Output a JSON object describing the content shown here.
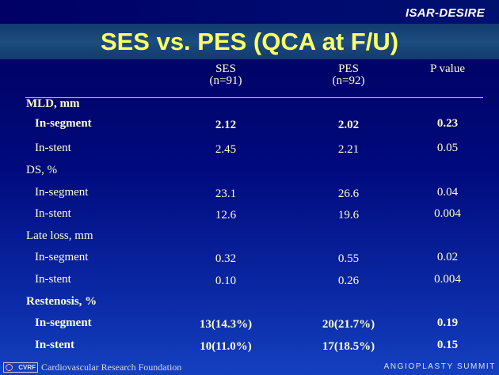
{
  "header": {
    "brand": "ISAR-DESIRE"
  },
  "title": "SES vs. PES (QCA at F/U)",
  "columns": {
    "ses": {
      "name": "SES",
      "n": "(n=91)"
    },
    "pes": {
      "name": "PES",
      "n": "(n=92)"
    },
    "p": {
      "name": "P value"
    }
  },
  "sections": [
    {
      "title": "MLD, mm",
      "rows": [
        {
          "label": "In-segment",
          "ses": "2.12",
          "pes": "2.02",
          "p": "0.23"
        },
        {
          "label": "In-stent",
          "ses": "2.45",
          "pes": "2.21",
          "p": "0.05"
        }
      ]
    },
    {
      "title": "DS, %",
      "rows": [
        {
          "label": "In-segment",
          "ses": "23.1",
          "pes": "26.6",
          "p": "0.04"
        },
        {
          "label": "In-stent",
          "ses": "12.6",
          "pes": "19.6",
          "p": "0.004"
        }
      ]
    },
    {
      "title": "Late loss, mm",
      "rows": [
        {
          "label": "In-segment",
          "ses": "0.32",
          "pes": "0.55",
          "p": "0.02"
        },
        {
          "label": "In-stent",
          "ses": "0.10",
          "pes": "0.26",
          "p": "0.004"
        }
      ]
    },
    {
      "title": "Restenosis, %",
      "rows": [
        {
          "label": "In-segment",
          "ses": "13(14.3%)",
          "pes": "20(21.7%)",
          "p": "0.19"
        },
        {
          "label": "In-stent",
          "ses": "10(11.0%)",
          "pes": "17(18.5%)",
          "p": "0.15"
        }
      ]
    }
  ],
  "footer": {
    "logo_text": "CVRF",
    "foundation": "Cardiovascular Research Foundation",
    "summit": "ANGIOPLASTY SUMMIT"
  }
}
